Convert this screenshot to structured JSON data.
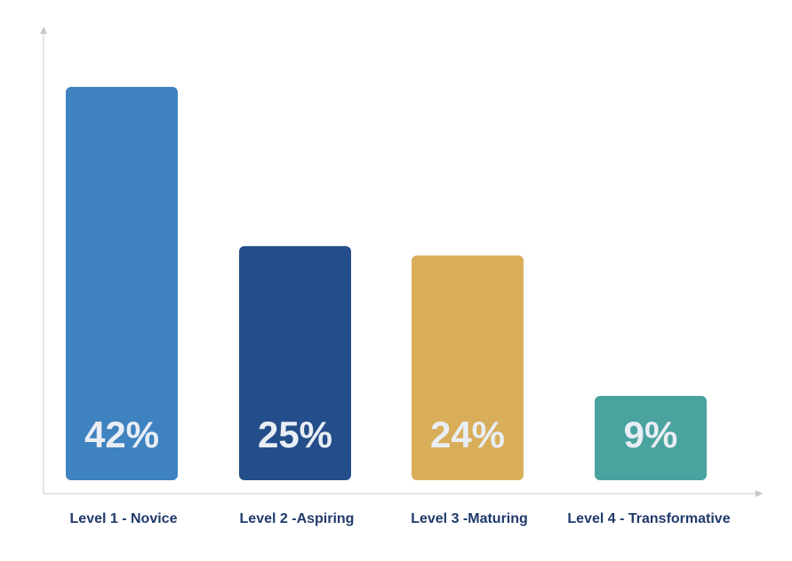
{
  "chart_data": {
    "type": "bar",
    "categories": [
      "Level 1 - Novice",
      "Level 2 -Aspiring",
      "Level 3 -Maturing",
      "Level 4 - Transformative"
    ],
    "values": [
      42,
      25,
      24,
      9
    ],
    "data_labels": [
      "42%",
      "25%",
      "24%",
      "9%"
    ],
    "colors": [
      "#3f82c0",
      "#244e8a",
      "#d9ae5a",
      "#4aa39f"
    ],
    "title": "",
    "xlabel": "",
    "ylabel": "",
    "ylim": [
      0,
      50
    ],
    "grid": false,
    "legend": "none"
  }
}
